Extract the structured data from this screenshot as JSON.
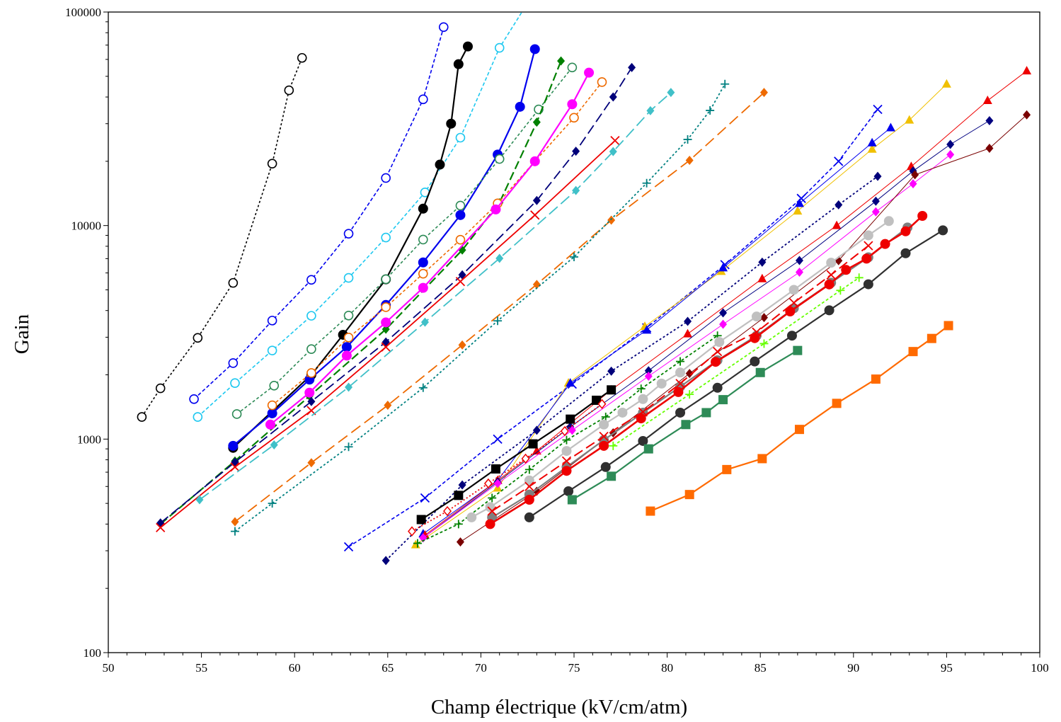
{
  "chart_data": {
    "type": "scatter",
    "title": "",
    "xlabel": "Champ électrique (kV/cm/atm)",
    "ylabel": "Gain",
    "x_scale": "linear",
    "y_scale": "log",
    "xlim": [
      50,
      100
    ],
    "ylim": [
      100,
      100000
    ],
    "x_ticks": [
      50,
      55,
      60,
      65,
      70,
      75,
      80,
      85,
      90,
      95,
      100
    ],
    "y_ticks": [
      100,
      1000,
      10000,
      100000
    ],
    "x_tick_labels": [
      "50",
      "55",
      "60",
      "65",
      "70",
      "75",
      "80",
      "85",
      "90",
      "95",
      "100"
    ],
    "y_tick_labels": [
      "100",
      "1000",
      "10000",
      "100000"
    ],
    "grid": false,
    "legend": "none",
    "series": [
      {
        "color": "#000000",
        "marker": "open-circle",
        "dash": "3,3",
        "width": 1.6,
        "x": [
          51.8,
          52.8,
          54.8,
          56.7,
          58.8,
          59.7,
          60.4
        ],
        "y": [
          1270,
          1730,
          2980,
          5390,
          19500,
          43000,
          61000
        ]
      },
      {
        "color": "#0000ee",
        "marker": "open-circle",
        "dash": "5,3",
        "width": 1.6,
        "x": [
          54.6,
          56.7,
          58.8,
          60.9,
          62.9,
          64.9,
          66.9,
          68.0
        ],
        "y": [
          1540,
          2270,
          3590,
          5570,
          9160,
          16700,
          39000,
          85000
        ]
      },
      {
        "color": "#1ec8f0",
        "marker": "open-circle",
        "dash": "5,3",
        "width": 1.6,
        "x": [
          54.8,
          56.8,
          58.8,
          60.9,
          62.9,
          64.9,
          67.0,
          68.9,
          71.0,
          72.5
        ],
        "y": [
          1270,
          1830,
          2600,
          3780,
          5690,
          8790,
          14300,
          25800,
          68000,
          110000
        ]
      },
      {
        "color": "#000000",
        "marker": "filled-circle",
        "dash": "",
        "width": 2.2,
        "x": [
          56.7,
          60.9,
          62.6,
          64.9,
          66.9,
          67.8,
          68.4,
          68.8,
          69.3
        ],
        "y": [
          910,
          2000,
          3080,
          5600,
          12000,
          19300,
          30000,
          57000,
          69000
        ]
      },
      {
        "color": "#0000ee",
        "marker": "filled-circle",
        "dash": "",
        "width": 2.2,
        "x": [
          56.7,
          58.8,
          60.8,
          62.8,
          64.9,
          66.9,
          68.9,
          70.9,
          72.1,
          72.9
        ],
        "y": [
          930,
          1320,
          1900,
          2700,
          4250,
          6720,
          11200,
          21500,
          36000,
          67000
        ]
      },
      {
        "color": "#2e8b57",
        "marker": "open-circle",
        "dash": "4,3",
        "width": 1.6,
        "x": [
          56.9,
          58.9,
          60.9,
          62.9,
          64.9,
          66.9,
          68.9,
          71.0,
          73.1,
          74.9
        ],
        "y": [
          1310,
          1780,
          2640,
          3790,
          5610,
          8600,
          12400,
          20500,
          35000,
          55000
        ]
      },
      {
        "color": "#008000",
        "marker": "diamond",
        "dash": "12,5",
        "width": 2.2,
        "x": [
          52.8,
          56.8,
          60.8,
          64.9,
          69.0,
          71.0,
          73.0,
          74.3
        ],
        "y": [
          400,
          790,
          1590,
          3270,
          7680,
          12800,
          30500,
          59000
        ]
      },
      {
        "color": "#ee6a00",
        "marker": "open-circle",
        "dash": "4,3",
        "width": 1.6,
        "x": [
          58.8,
          60.9,
          62.9,
          64.9,
          66.9,
          68.9,
          70.9,
          72.9,
          75.0,
          76.5
        ],
        "y": [
          1440,
          2040,
          2990,
          4150,
          5950,
          8580,
          12700,
          20000,
          32000,
          47000
        ]
      },
      {
        "color": "#ff00ff",
        "marker": "filled-circle",
        "dash": "",
        "width": 2.2,
        "x": [
          58.7,
          60.8,
          62.8,
          64.9,
          66.9,
          70.8,
          72.9,
          74.9,
          75.8
        ],
        "y": [
          1170,
          1650,
          2460,
          3520,
          5110,
          11900,
          20000,
          37000,
          52000
        ]
      },
      {
        "color": "#00007a",
        "marker": "diamond",
        "dash": "14,6",
        "width": 1.8,
        "x": [
          52.8,
          56.8,
          60.9,
          64.9,
          69.0,
          73.0,
          75.1,
          77.1,
          78.1
        ],
        "y": [
          405,
          780,
          1500,
          2850,
          5880,
          13100,
          22300,
          40000,
          55000
        ]
      },
      {
        "color": "#ee0000",
        "marker": "x",
        "dash": "",
        "width": 1.8,
        "x": [
          52.8,
          56.8,
          60.9,
          64.9,
          68.9,
          72.9,
          77.2
        ],
        "y": [
          385,
          740,
          1360,
          2700,
          5470,
          11200,
          25000
        ]
      },
      {
        "color": "#40c0c8",
        "marker": "diamond",
        "dash": "16,6",
        "width": 1.8,
        "x": [
          54.9,
          58.9,
          62.9,
          67.0,
          71.0,
          75.1,
          77.1,
          79.1,
          80.2
        ],
        "y": [
          520,
          940,
          1750,
          3530,
          7020,
          14600,
          22200,
          34500,
          42000
        ]
      },
      {
        "color": "#ee6a00",
        "marker": "diamond",
        "dash": "16,7",
        "width": 1.8,
        "x": [
          56.8,
          60.9,
          65.0,
          69.0,
          73.0,
          77.0,
          81.2,
          85.2
        ],
        "y": [
          410,
          775,
          1440,
          2760,
          5300,
          10600,
          20200,
          42000
        ]
      },
      {
        "color": "#008080",
        "marker": "plus",
        "dash": "3,3",
        "width": 1.8,
        "x": [
          56.8,
          58.8,
          62.9,
          66.9,
          70.9,
          75.0,
          78.9,
          81.1,
          82.3,
          83.1
        ],
        "y": [
          370,
          500,
          920,
          1740,
          3580,
          7130,
          15800,
          25300,
          34600,
          46000
        ]
      },
      {
        "color": "#0000ee",
        "marker": "x",
        "dash": "5,3",
        "width": 1.6,
        "x": [
          62.9,
          67.0,
          70.9,
          74.9,
          78.9,
          83.1,
          87.2,
          89.2,
          91.3
        ],
        "y": [
          313,
          530,
          1000,
          1810,
          3320,
          6560,
          13400,
          20000,
          35000
        ]
      },
      {
        "color": "#f0c000",
        "marker": "triangle",
        "dash": "",
        "width": 1.0,
        "x": [
          66.5,
          70.9,
          74.7,
          78.8,
          82.9,
          87.0,
          91.0,
          93.0,
          95.0
        ],
        "y": [
          320,
          590,
          1830,
          3370,
          6100,
          11700,
          22800,
          31200,
          46000
        ]
      },
      {
        "color": "#0000ee",
        "marker": "triangle",
        "dash": "",
        "width": 1.0,
        "x": [
          66.9,
          70.9,
          74.8,
          78.9,
          83.0,
          87.1,
          91.0,
          92.0
        ],
        "y": [
          360,
          640,
          1830,
          3240,
          6340,
          12700,
          24400,
          28700
        ]
      },
      {
        "color": "#ee0000",
        "marker": "triangle",
        "dash": "",
        "width": 1.0,
        "x": [
          67.0,
          70.9,
          73.0,
          77.0,
          81.1,
          85.1,
          89.1,
          93.1,
          97.2,
          99.3
        ],
        "y": [
          355,
          640,
          880,
          1700,
          3110,
          5640,
          10000,
          18900,
          38500,
          53000
        ]
      },
      {
        "color": "#00007a",
        "marker": "diamond",
        "dash": "3,3",
        "width": 1.8,
        "x": [
          64.9,
          69.0,
          73.0,
          77.0,
          81.1,
          85.1,
          89.2,
          91.3
        ],
        "y": [
          270,
          610,
          1100,
          2080,
          3560,
          6740,
          12500,
          17000
        ]
      },
      {
        "color": "#000080",
        "marker": "diamond",
        "dash": "",
        "width": 1.0,
        "x": [
          66.9,
          70.9,
          74.8,
          79.0,
          83.0,
          87.1,
          91.2,
          93.2,
          95.2,
          97.3
        ],
        "y": [
          345,
          630,
          1140,
          2090,
          3900,
          6860,
          13000,
          18000,
          24000,
          31000
        ]
      },
      {
        "color": "#ff00ff",
        "marker": "diamond",
        "dash": "",
        "width": 1.0,
        "x": [
          66.9,
          70.9,
          74.9,
          79.0,
          83.0,
          87.1,
          91.2,
          93.2,
          95.2
        ],
        "y": [
          345,
          620,
          1100,
          1970,
          3450,
          6050,
          11600,
          15700,
          21500
        ]
      },
      {
        "color": "#7a0000",
        "marker": "diamond",
        "dash": "",
        "width": 1.0,
        "x": [
          68.9,
          73.0,
          77.1,
          81.2,
          85.2,
          89.2,
          93.3,
          97.3,
          99.3
        ],
        "y": [
          330,
          570,
          1070,
          2030,
          3710,
          6850,
          17300,
          23000,
          33000
        ]
      },
      {
        "color": "#000000",
        "marker": "square",
        "dash": "",
        "width": 2.2,
        "x": [
          66.8,
          68.8,
          70.8,
          72.8,
          74.8,
          76.2,
          77.0
        ],
        "y": [
          420,
          545,
          725,
          950,
          1240,
          1520,
          1700
        ]
      },
      {
        "color": "#ee0000",
        "marker": "open-diamond",
        "dash": "2,3",
        "width": 1.8,
        "x": [
          66.3,
          68.2,
          70.4,
          72.4,
          74.5,
          76.5
        ],
        "y": [
          370,
          460,
          620,
          810,
          1090,
          1460
        ]
      },
      {
        "color": "#008000",
        "marker": "plus",
        "dash": "4,3",
        "width": 1.8,
        "x": [
          66.6,
          68.8,
          70.6,
          72.6,
          74.6,
          76.7,
          78.6,
          80.7,
          82.7
        ],
        "y": [
          325,
          400,
          530,
          720,
          990,
          1270,
          1720,
          2310,
          3050
        ]
      },
      {
        "color": "#c0c0c0",
        "marker": "filled-circle",
        "dash": "",
        "width": 2.2,
        "x": [
          69.5,
          70.5,
          72.6,
          74.6,
          76.6,
          77.6,
          78.7,
          79.7,
          80.7,
          82.8,
          84.8,
          86.8,
          88.8,
          90.8,
          91.9
        ],
        "y": [
          430,
          480,
          640,
          880,
          1170,
          1330,
          1540,
          1820,
          2050,
          2850,
          3750,
          5000,
          6700,
          9000,
          10500
        ]
      },
      {
        "color": "#7f7f7f",
        "marker": "filled-circle",
        "dash": "",
        "width": 2.2,
        "x": [
          70.6,
          72.6,
          74.6,
          76.6,
          78.7,
          80.7,
          82.7,
          84.8,
          86.8,
          88.8,
          90.8,
          92.9
        ],
        "y": [
          430,
          550,
          740,
          990,
          1330,
          1760,
          2340,
          3050,
          4100,
          5400,
          7100,
          9800
        ]
      },
      {
        "color": "#ee0000",
        "marker": "x",
        "dash": "14,6",
        "width": 2.0,
        "x": [
          70.6,
          72.6,
          74.6,
          76.6,
          78.7,
          80.7,
          82.7,
          84.8,
          86.8,
          88.8,
          90.8
        ],
        "y": [
          460,
          600,
          790,
          1030,
          1340,
          1820,
          2570,
          3170,
          4350,
          5880,
          8050
        ]
      },
      {
        "color": "#ee0000",
        "marker": "filled-circle",
        "dash": "",
        "width": 2.6,
        "x": [
          70.5,
          72.6,
          74.6,
          76.6,
          78.6,
          80.6,
          82.6,
          84.7,
          86.6,
          88.7,
          89.6,
          90.7,
          91.7,
          92.8,
          93.7
        ],
        "y": [
          400,
          520,
          710,
          930,
          1250,
          1660,
          2300,
          2970,
          3960,
          5300,
          6200,
          7000,
          8200,
          9400,
          11100
        ]
      },
      {
        "color": "#303030",
        "marker": "filled-circle",
        "dash": "",
        "width": 2.2,
        "x": [
          72.6,
          74.7,
          76.7,
          78.7,
          80.7,
          82.7,
          84.7,
          86.7,
          88.7,
          90.8,
          92.8,
          94.8
        ],
        "y": [
          430,
          570,
          740,
          980,
          1330,
          1740,
          2310,
          3050,
          4010,
          5310,
          7420,
          9500
        ]
      },
      {
        "color": "#66ff00",
        "marker": "plus",
        "dash": "4,3",
        "width": 1.8,
        "x": [
          77.1,
          81.2,
          85.2,
          89.3,
          90.3
        ],
        "y": [
          930,
          1620,
          2800,
          4970,
          5700
        ]
      },
      {
        "color": "#2e8b57",
        "marker": "square",
        "dash": "",
        "width": 2.2,
        "x": [
          74.9,
          77.0,
          79.0,
          81.0,
          82.1,
          83.0,
          85.0,
          87.0
        ],
        "y": [
          520,
          670,
          900,
          1170,
          1330,
          1530,
          2050,
          2600
        ]
      },
      {
        "color": "#ff6a00",
        "marker": "square",
        "dash": "",
        "width": 2.2,
        "x": [
          79.1,
          81.2,
          83.2,
          85.1,
          87.1,
          89.1,
          91.2,
          93.2,
          94.2,
          95.1
        ],
        "y": [
          460,
          550,
          720,
          810,
          1110,
          1470,
          1910,
          2570,
          2960,
          3400
        ]
      }
    ]
  }
}
